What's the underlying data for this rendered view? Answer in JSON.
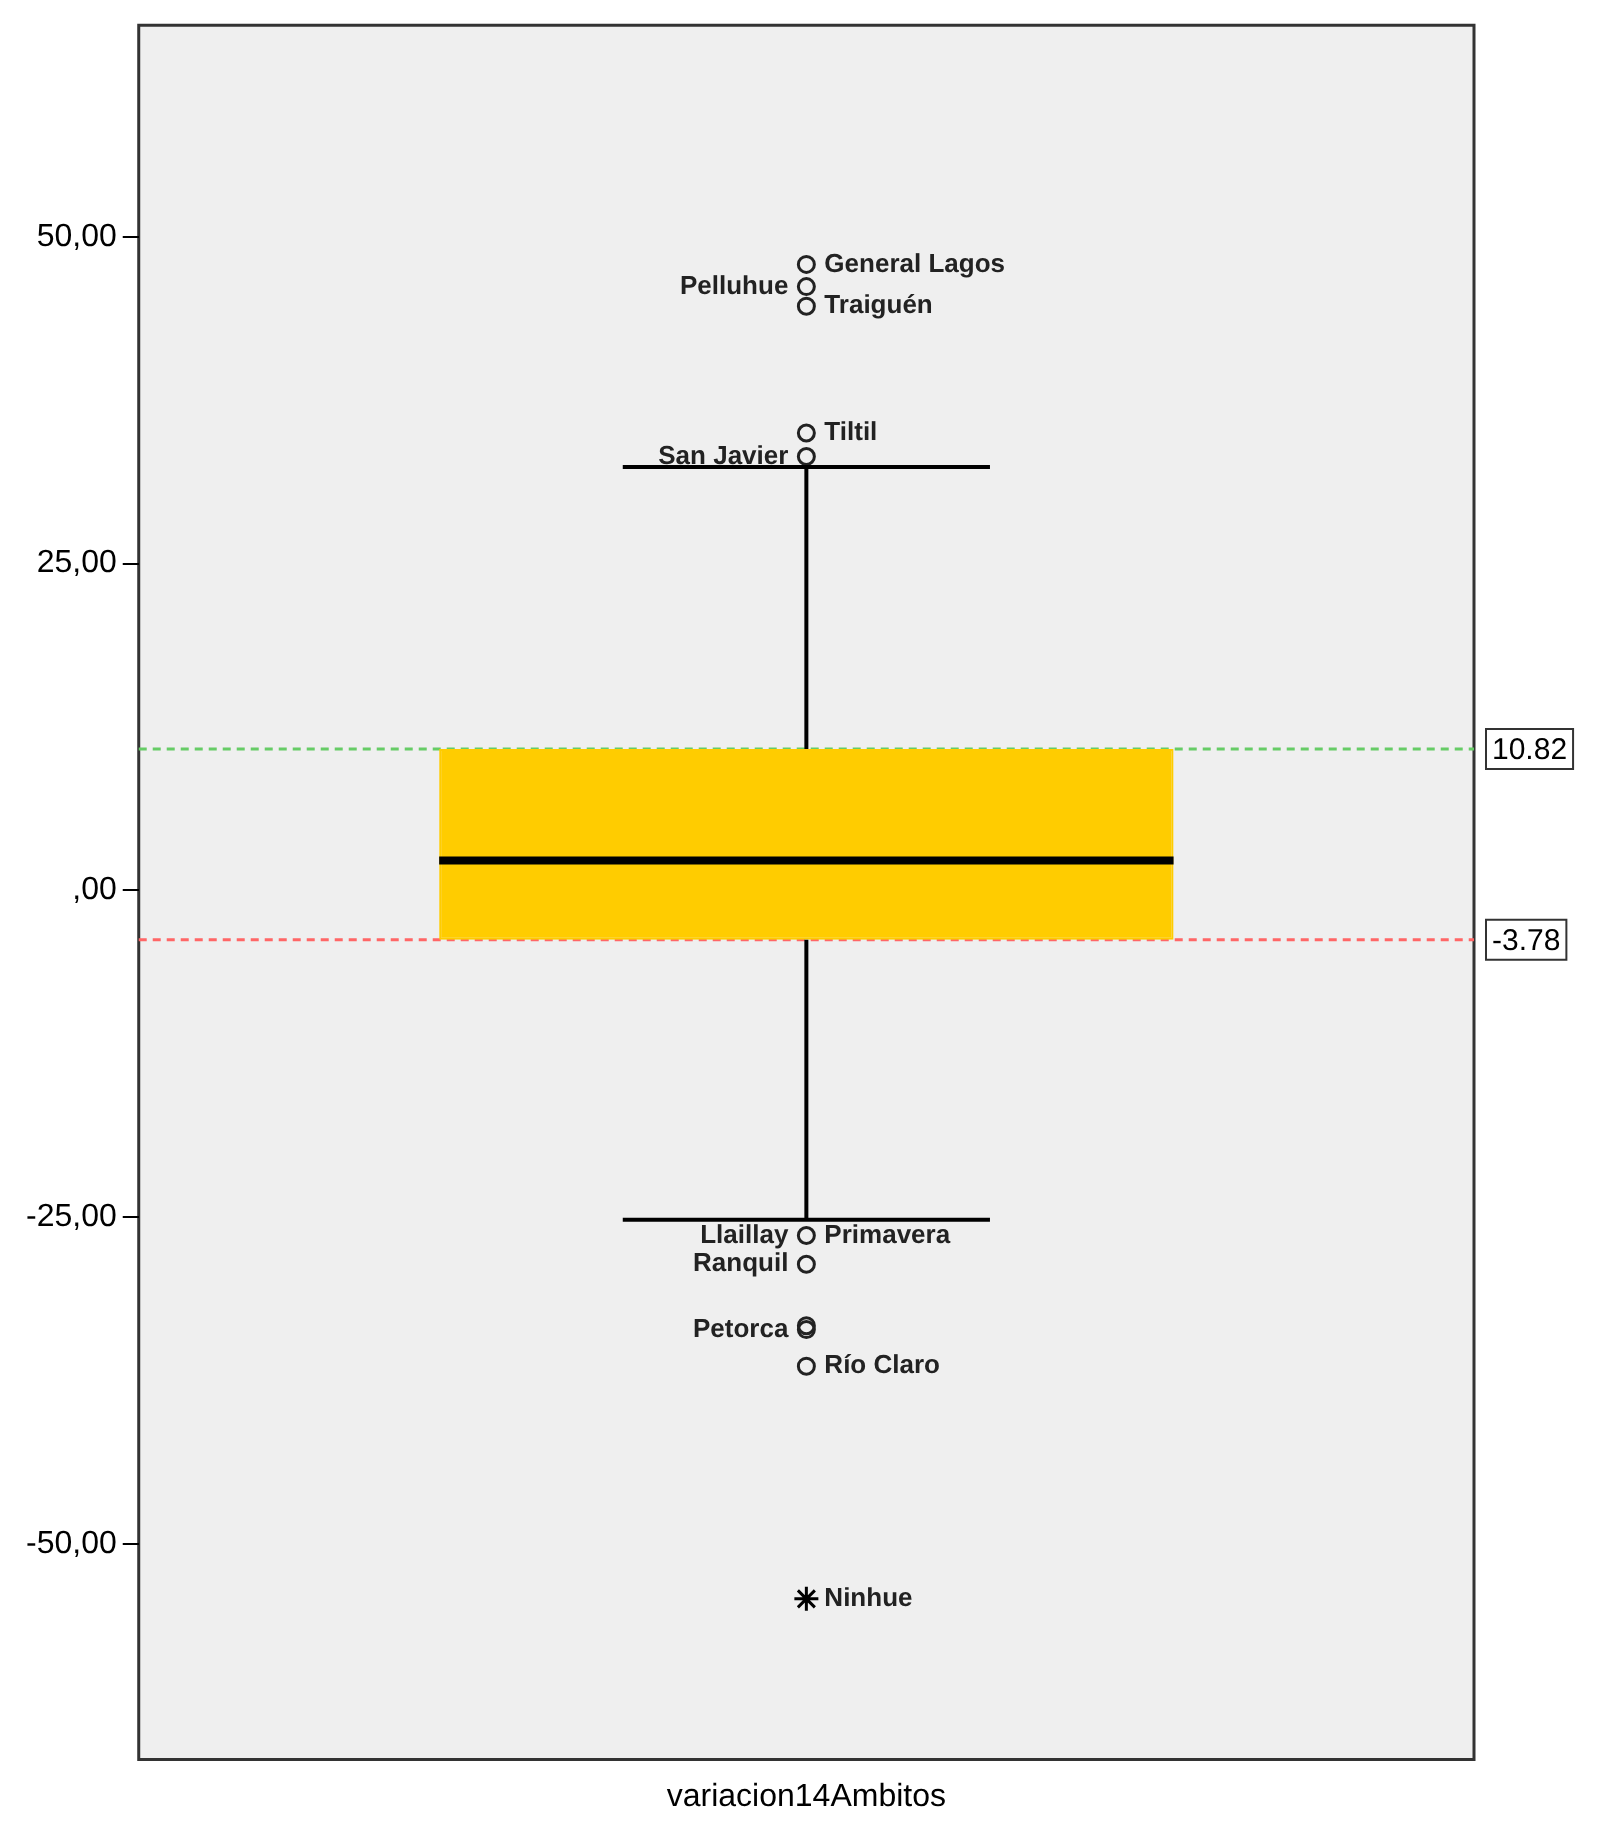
{
  "chart_data": {
    "type": "box",
    "categories": [
      "variacion14Ambitos"
    ],
    "series": [
      {
        "color": "#ffcc00",
        "boxes": [
          {
            "low": -25.2,
            "q1": -3.78,
            "median": 2.3,
            "q3": 10.82,
            "high": 32.4
          }
        ]
      },
      {
        "type": "scatter",
        "marker": "circle",
        "color": "#222222",
        "x": [
          "variacion14Ambitos",
          "variacion14Ambitos",
          "variacion14Ambitos",
          "variacion14Ambitos",
          "variacion14Ambitos",
          "variacion14Ambitos",
          "variacion14Ambitos",
          "variacion14Ambitos",
          "variacion14Ambitos",
          "variacion14Ambitos"
        ],
        "values": [
          47.9,
          46.2,
          44.7,
          35.0,
          33.2,
          -26.4,
          -28.6,
          -33.3,
          -33.6,
          -36.4
        ]
      },
      {
        "type": "scatter",
        "marker": "cross",
        "color": "#000000",
        "x": [
          "variacion14Ambitos"
        ],
        "values": [
          -54.2
        ]
      }
    ],
    "ylim": [
      -66.5,
      66.2
    ],
    "yticks": [
      {
        "value": -50,
        "label": "-50,00"
      },
      {
        "value": -25,
        "label": "-25,00"
      },
      {
        "value": 0,
        "label": ",00"
      },
      {
        "value": 25,
        "label": "25,00"
      },
      {
        "value": 50,
        "label": "50,00"
      }
    ],
    "ref_lines": [
      {
        "axis": "y",
        "value": 10.82,
        "label": "10.82",
        "color": "#66cc66",
        "line_style": "dashed"
      },
      {
        "axis": "y",
        "value": -3.78,
        "label": "-3.78",
        "color": "#ff6666",
        "line_style": "dashed"
      }
    ],
    "annotations": [
      {
        "text": "General Lagos",
        "x": "variacion14Ambitos",
        "y": 47.9
      },
      {
        "text": "Pelluhue",
        "x": "variacion14Ambitos",
        "y": 46.2
      },
      {
        "text": "Traiguén",
        "x": "variacion14Ambitos",
        "y": 44.7
      },
      {
        "text": "San Javier",
        "x": "variacion14Ambitos",
        "y": 33.2
      },
      {
        "text": "Tiltil",
        "x": "variacion14Ambitos",
        "y": 35.0
      },
      {
        "text": "Llaillay",
        "x": "variacion14Ambitos",
        "y": -26.4
      },
      {
        "text": "Primavera",
        "x": "variacion14Ambitos",
        "y": -26.4
      },
      {
        "text": "Ranquil",
        "x": "variacion14Ambitos",
        "y": -28.6
      },
      {
        "text": "Río Claro",
        "x": "variacion14Ambitos",
        "y": -36.4
      },
      {
        "text": "Petorca",
        "x": "variacion14Ambitos",
        "y": -33.6
      },
      {
        "text": "Ninhue",
        "x": "variacion14Ambitos",
        "y": -54.2
      }
    ],
    "grid": false,
    "legend": false
  }
}
